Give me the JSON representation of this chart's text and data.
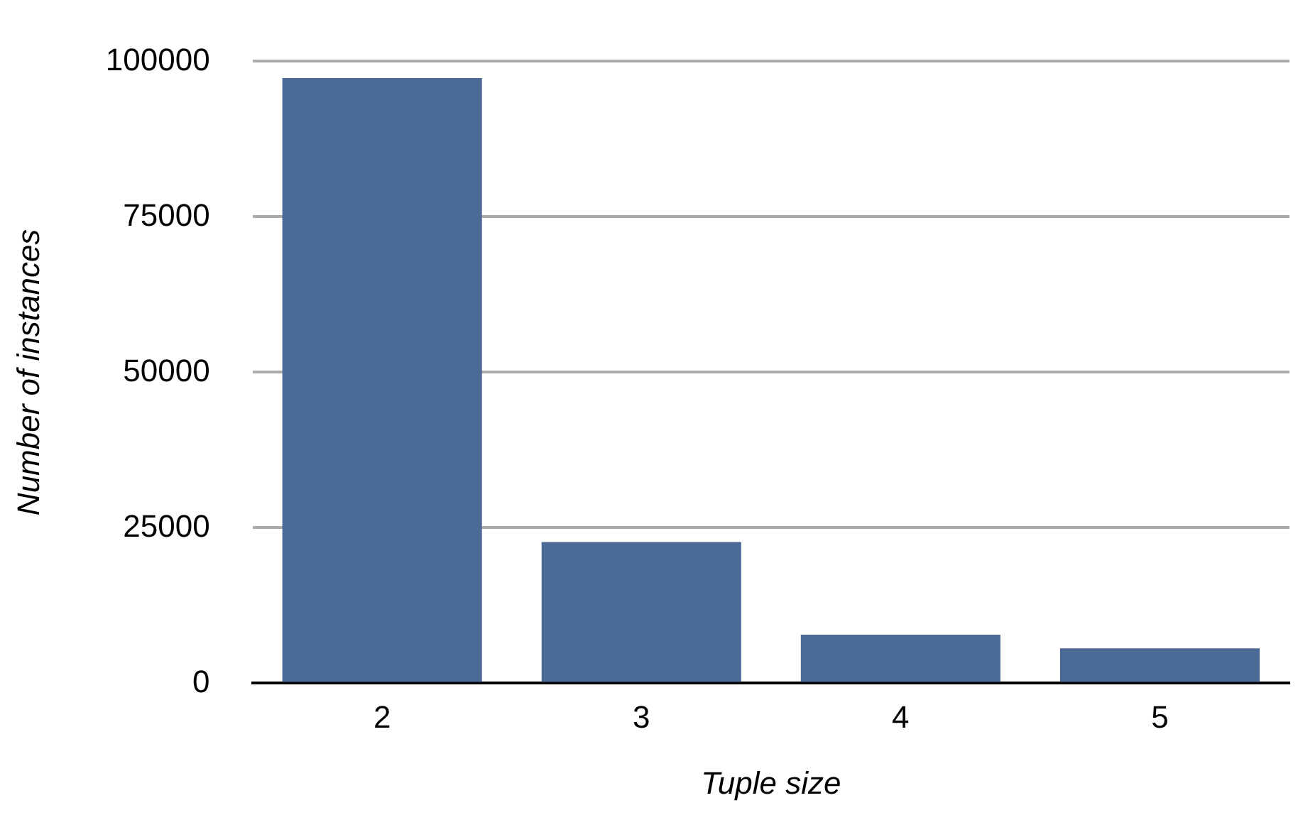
{
  "chart_data": {
    "type": "bar",
    "xlabel": "Tuple size",
    "ylabel": "Number of instances",
    "categories": [
      "2",
      "3",
      "4",
      "5"
    ],
    "values": [
      97300,
      22700,
      7800,
      5600
    ],
    "color": "#4c6a98",
    "ylim": [
      0,
      100000
    ],
    "yticks": [
      0,
      25000,
      50000,
      75000,
      100000
    ],
    "grid": "y"
  }
}
